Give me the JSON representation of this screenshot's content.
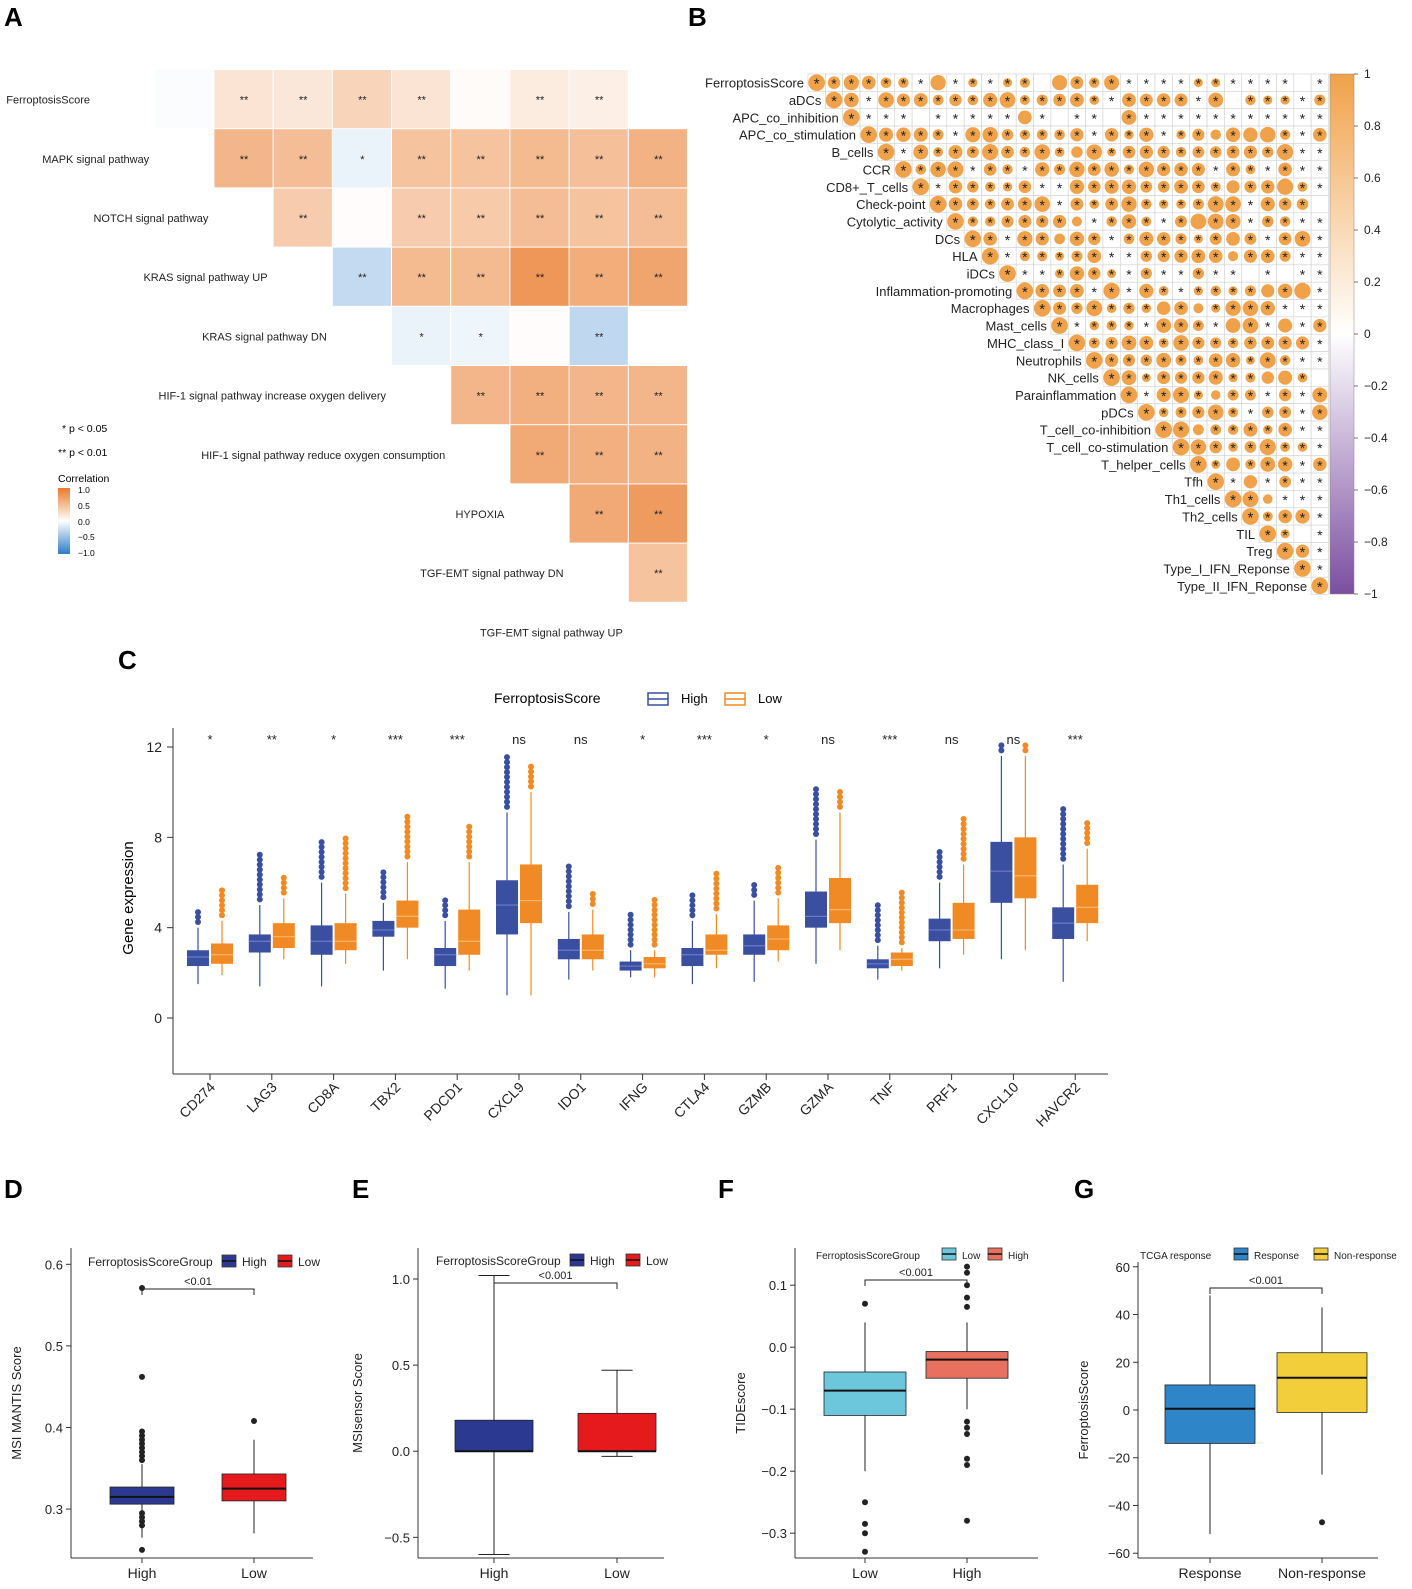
{
  "panels": {
    "A": {
      "letter": "A",
      "legend": {
        "sig1": "* p < 0.05",
        "sig2": "** p < 0.01",
        "title": "Correlation",
        "ticks": [
          "1.0",
          "0.5",
          "0.0",
          "−0.5",
          "−1.0"
        ]
      },
      "rows": [
        "FerroptosisScore",
        "MAPK signal pathway",
        "NOTCH signal pathway",
        "KRAS signal pathway UP",
        "KRAS signal pathway DN",
        "HIF-1 signal pathway increase oxygen delivery",
        "HIF-1 signal pathway reduce oxygen consumption",
        "HYPOXIA",
        "TGF-EMT signal pathway DN",
        "TGF-EMT signal pathway UP"
      ],
      "cells": [
        [
          0,
          1,
          -0.02,
          ""
        ],
        [
          0,
          2,
          0.2,
          "**"
        ],
        [
          0,
          3,
          0.18,
          "**"
        ],
        [
          0,
          4,
          0.32,
          "**"
        ],
        [
          0,
          5,
          0.2,
          "**"
        ],
        [
          0,
          6,
          0.03,
          ""
        ],
        [
          0,
          7,
          0.15,
          "**"
        ],
        [
          0,
          8,
          0.12,
          "**"
        ],
        [
          1,
          2,
          0.55,
          "**"
        ],
        [
          1,
          3,
          0.5,
          "**"
        ],
        [
          1,
          4,
          -0.1,
          "*"
        ],
        [
          1,
          5,
          0.45,
          "**"
        ],
        [
          1,
          6,
          0.45,
          "**"
        ],
        [
          1,
          7,
          0.52,
          "**"
        ],
        [
          1,
          8,
          0.48,
          "**"
        ],
        [
          1,
          9,
          0.58,
          "**"
        ],
        [
          2,
          3,
          0.38,
          "**"
        ],
        [
          2,
          4,
          0.02,
          ""
        ],
        [
          2,
          5,
          0.38,
          "**"
        ],
        [
          2,
          6,
          0.4,
          "**"
        ],
        [
          2,
          7,
          0.5,
          "**"
        ],
        [
          2,
          8,
          0.45,
          "**"
        ],
        [
          2,
          9,
          0.5,
          "**"
        ],
        [
          3,
          4,
          -0.28,
          "**"
        ],
        [
          3,
          5,
          0.52,
          "**"
        ],
        [
          3,
          6,
          0.52,
          "**"
        ],
        [
          3,
          7,
          0.78,
          "**"
        ],
        [
          3,
          8,
          0.62,
          "**"
        ],
        [
          3,
          9,
          0.68,
          "**"
        ],
        [
          4,
          5,
          -0.1,
          "*"
        ],
        [
          4,
          6,
          -0.08,
          "*"
        ],
        [
          4,
          7,
          0.02,
          ""
        ],
        [
          4,
          8,
          -0.3,
          "**"
        ],
        [
          5,
          6,
          0.55,
          "**"
        ],
        [
          5,
          7,
          0.6,
          "**"
        ],
        [
          5,
          8,
          0.55,
          "**"
        ],
        [
          5,
          9,
          0.55,
          "**"
        ],
        [
          6,
          7,
          0.65,
          "**"
        ],
        [
          6,
          8,
          0.6,
          "**"
        ],
        [
          6,
          9,
          0.58,
          "**"
        ],
        [
          7,
          8,
          0.65,
          "**"
        ],
        [
          7,
          9,
          0.75,
          "**"
        ],
        [
          8,
          9,
          0.45,
          "**"
        ]
      ]
    },
    "B": {
      "letter": "B",
      "colorbar_ticks": [
        "1",
        "0.8",
        "0.6",
        "0.4",
        "0.2",
        "0",
        "−0.2",
        "−0.4",
        "−0.6",
        "−0.8",
        "−1"
      ],
      "rows": [
        "FerroptosisScore",
        "aDCs",
        "APC_co_inhibition",
        "APC_co_stimulation",
        "B_cells",
        "CCR",
        "CD8+_T_cells",
        "Check-point",
        "Cytolytic_activity",
        "DCs",
        "HLA",
        "iDCs",
        "Inflammation-promoting",
        "Macrophages",
        "Mast_cells",
        "MHC_class_I",
        "Neutrophils",
        "NK_cells",
        "Parainflammation",
        "pDCs",
        "T_cell_co-inhibition",
        "T_cell_co-stimulation",
        "T_helper_cells",
        "Tfh",
        "Th1_cells",
        "Th2_cells",
        "TIL",
        "Treg",
        "Type_I_IFN_Reponse",
        "Type_II_IFN_Reponse"
      ],
      "star": "*"
    },
    "C": {
      "letter": "C",
      "legend_title": "FerroptosisScore",
      "legend_items": [
        "High",
        "Low"
      ],
      "ylabel": "Gene expression",
      "yticks": [
        "0",
        "4",
        "8",
        "12"
      ]
    },
    "D": {
      "letter": "D",
      "legend_title": "FerroptosisScoreGroup",
      "legend_items": [
        "High",
        "Low"
      ],
      "ylabel": "MSI MANTIS Score",
      "pvalue": "<0.01",
      "xticks": [
        "High",
        "Low"
      ],
      "yticks": [
        "0.3",
        "0.4",
        "0.5",
        "0.6"
      ]
    },
    "E": {
      "letter": "E",
      "legend_title": "FerroptosisScoreGroup",
      "legend_items": [
        "High",
        "Low"
      ],
      "ylabel": "MSIsensor Score",
      "pvalue": "<0.001",
      "xticks": [
        "High",
        "Low"
      ],
      "yticks": [
        "−0.5",
        "0.0",
        "0.5",
        "1.0"
      ]
    },
    "F": {
      "letter": "F",
      "legend_title": "FerroptosisScoreGroup",
      "legend_items": [
        "Low",
        "High"
      ],
      "ylabel": "TIDEscore",
      "pvalue": "<0.001",
      "xticks": [
        "Low",
        "High"
      ],
      "yticks": [
        "−0.3",
        "−0.2",
        "−0.1",
        "0.0",
        "0.1"
      ]
    },
    "G": {
      "letter": "G",
      "legend_title": "TCGA response",
      "legend_items": [
        "Response",
        "Non-response"
      ],
      "ylabel": "FerroptosisScore",
      "pvalue": "<0.001",
      "xticks": [
        "Response",
        "Non-response"
      ],
      "yticks": [
        "−60",
        "−40",
        "−20",
        "0",
        "20",
        "40",
        "60"
      ]
    }
  },
  "colors": {
    "orange": "#f0a24a",
    "blue_box": "#3a4fa0",
    "orange_box": "#f08a24",
    "navy": "#2b3990",
    "red": "#e41a1c",
    "cyan": "#6cc7dc",
    "salmon": "#e8705e",
    "steel_blue": "#2e86c8",
    "yellow": "#f2cf3a",
    "neg_corr": "#2e7cc8",
    "pos_corr": "#ea7a2a",
    "purple": "#7b4ea0"
  },
  "chart_data": [
    {
      "id": "A",
      "type": "heatmap",
      "title": "",
      "legend_title": "Correlation",
      "variables": [
        "FerroptosisScore",
        "MAPK signal pathway",
        "NOTCH signal pathway",
        "KRAS signal pathway UP",
        "KRAS signal pathway DN",
        "HIF-1 signal pathway increase oxygen delivery",
        "HIF-1 signal pathway reduce oxygen consumption",
        "HYPOXIA",
        "TGF-EMT signal pathway DN",
        "TGF-EMT signal pathway UP"
      ],
      "note": "upper triangle correlation matrix; cell = [row, col, r, significance]"
    },
    {
      "id": "B",
      "type": "heatmap",
      "title": "",
      "note": "correlation matrix of 30 immune signatures; orange dots = positive correlations, * = significant",
      "color_range": [
        -1,
        1
      ]
    },
    {
      "id": "C",
      "type": "box",
      "ylabel": "Gene expression",
      "ylim": [
        -2.5,
        12.5
      ],
      "categories": [
        "CD274",
        "LAG3",
        "CD8A",
        "TBX2",
        "PDCD1",
        "CXCL9",
        "IDO1",
        "IFNG",
        "CTLA4",
        "GZMB",
        "GZMA",
        "TNF",
        "PRF1",
        "CXCL10",
        "HAVCR2"
      ],
      "significance": [
        "*",
        "**",
        "*",
        "***",
        "***",
        "ns",
        "ns",
        "*",
        "***",
        "*",
        "ns",
        "***",
        "ns",
        "ns",
        "***"
      ],
      "series": [
        {
          "name": "High",
          "boxes": [
            [
              1.5,
              2.3,
              2.7,
              3.0,
              4.0
            ],
            [
              1.4,
              2.9,
              3.4,
              3.7,
              5.0
            ],
            [
              1.4,
              2.8,
              3.4,
              4.1,
              6.0
            ],
            [
              2.1,
              3.6,
              3.9,
              4.3,
              5.1
            ],
            [
              1.3,
              2.3,
              2.8,
              3.1,
              4.3
            ],
            [
              1.0,
              3.7,
              5.0,
              6.1,
              9.1
            ],
            [
              1.7,
              2.6,
              3.0,
              3.5,
              4.7
            ],
            [
              1.8,
              2.1,
              2.3,
              2.5,
              3.0
            ],
            [
              1.5,
              2.3,
              2.8,
              3.1,
              4.3
            ],
            [
              1.6,
              2.8,
              3.2,
              3.7,
              5.2
            ],
            [
              2.4,
              4.0,
              4.5,
              5.6,
              7.9
            ],
            [
              1.7,
              2.2,
              2.4,
              2.6,
              3.2
            ],
            [
              2.2,
              3.4,
              3.9,
              4.4,
              6.0
            ],
            [
              2.6,
              5.1,
              6.5,
              7.8,
              11.6
            ],
            [
              1.6,
              3.5,
              4.2,
              4.9,
              6.8
            ]
          ]
        },
        {
          "name": "Low",
          "boxes": [
            [
              1.9,
              2.4,
              2.8,
              3.3,
              4.3
            ],
            [
              2.6,
              3.1,
              3.6,
              4.2,
              5.3
            ],
            [
              2.4,
              3.0,
              3.4,
              4.2,
              5.5
            ],
            [
              2.6,
              4.0,
              4.5,
              5.2,
              6.9
            ],
            [
              2.1,
              2.8,
              3.4,
              4.8,
              6.9
            ],
            [
              1.0,
              4.2,
              5.2,
              6.8,
              10.0
            ],
            [
              2.1,
              2.6,
              3.0,
              3.7,
              4.8
            ],
            [
              1.8,
              2.2,
              2.4,
              2.7,
              3.0
            ],
            [
              2.2,
              2.8,
              3.0,
              3.7,
              4.6
            ],
            [
              2.5,
              3.0,
              3.5,
              4.1,
              5.3
            ],
            [
              3.0,
              4.2,
              4.8,
              6.2,
              9.1
            ],
            [
              2.1,
              2.3,
              2.6,
              2.9,
              3.1
            ],
            [
              2.8,
              3.5,
              3.9,
              5.1,
              6.8
            ],
            [
              3.0,
              5.3,
              6.3,
              8.0,
              11.6
            ],
            [
              3.4,
              4.2,
              4.9,
              5.9,
              7.5
            ]
          ]
        }
      ]
    },
    {
      "id": "D",
      "type": "box",
      "ylabel": "MSI MANTIS Score",
      "categories": [
        "High",
        "Low"
      ],
      "ylim": [
        0.24,
        0.62
      ],
      "boxes": [
        [
          0.265,
          0.306,
          0.315,
          0.327,
          0.355
        ],
        [
          0.27,
          0.31,
          0.325,
          0.343,
          0.385
        ]
      ],
      "outliers": [
        [
          0.571,
          0.462,
          0.395,
          0.39,
          0.385,
          0.38,
          0.375,
          0.37,
          0.365,
          0.36,
          0.295,
          0.29,
          0.285,
          0.28,
          0.25
        ],
        [
          0.408
        ]
      ],
      "pvalue": "<0.01"
    },
    {
      "id": "E",
      "type": "box",
      "ylabel": "MSIsensor Score",
      "categories": [
        "High",
        "Low"
      ],
      "ylim": [
        -0.62,
        1.18
      ],
      "boxes": [
        [
          -0.6,
          0.0,
          0.0,
          0.18,
          1.02
        ],
        [
          -0.03,
          0.0,
          0.0,
          0.22,
          0.47
        ]
      ],
      "pvalue": "<0.001"
    },
    {
      "id": "F",
      "type": "box",
      "ylabel": "TIDEscore",
      "categories": [
        "Low",
        "High"
      ],
      "ylim": [
        -0.34,
        0.16
      ],
      "boxes": [
        [
          -0.2,
          -0.11,
          -0.07,
          -0.04,
          0.04
        ],
        [
          -0.1,
          -0.05,
          -0.02,
          -0.007,
          0.04
        ]
      ],
      "outliers": [
        [
          0.07,
          -0.25,
          -0.285,
          -0.3,
          -0.33
        ],
        [
          0.13,
          0.12,
          0.1,
          0.08,
          0.065,
          -0.12,
          -0.13,
          -0.14,
          -0.18,
          -0.19,
          -0.28
        ]
      ],
      "pvalue": "<0.001"
    },
    {
      "id": "G",
      "type": "box",
      "ylabel": "FerroptosisScore",
      "categories": [
        "Response",
        "Non-response"
      ],
      "ylim": [
        -62,
        62
      ],
      "boxes": [
        [
          -52,
          -14,
          0.5,
          10.5,
          48
        ],
        [
          -27,
          -1,
          13.5,
          24,
          43
        ]
      ],
      "outliers": [
        [],
        [
          -47
        ]
      ],
      "pvalue": "<0.001"
    }
  ]
}
